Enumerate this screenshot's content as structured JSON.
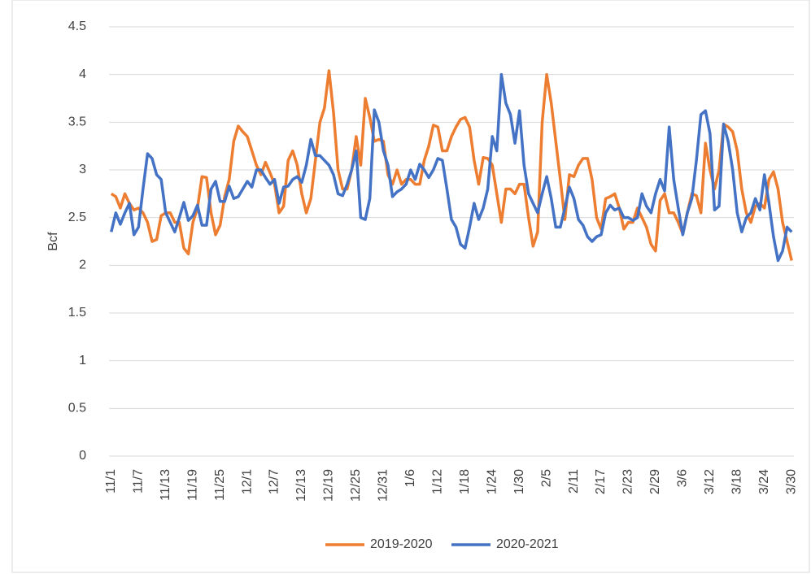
{
  "chart_data": {
    "type": "line",
    "y_label": "Bcf",
    "categories": [
      "11/1",
      null,
      null,
      null,
      null,
      null,
      "11/7",
      null,
      null,
      null,
      null,
      null,
      "11/13",
      null,
      null,
      null,
      null,
      null,
      "11/19",
      null,
      null,
      null,
      null,
      null,
      "11/25",
      null,
      null,
      null,
      null,
      null,
      "12/1",
      null,
      null,
      null,
      null,
      null,
      "12/7",
      null,
      null,
      null,
      null,
      null,
      "12/13",
      null,
      null,
      null,
      null,
      null,
      "12/19",
      null,
      null,
      null,
      null,
      null,
      "12/25",
      null,
      null,
      null,
      null,
      null,
      "12/31",
      null,
      null,
      null,
      null,
      null,
      "1/6",
      null,
      null,
      null,
      null,
      null,
      "1/12",
      null,
      null,
      null,
      null,
      null,
      "1/18",
      null,
      null,
      null,
      null,
      null,
      "1/24",
      null,
      null,
      null,
      null,
      null,
      "1/30",
      null,
      null,
      null,
      null,
      null,
      "2/5",
      null,
      null,
      null,
      null,
      null,
      "2/11",
      null,
      null,
      null,
      null,
      null,
      "2/17",
      null,
      null,
      null,
      null,
      null,
      "2/23",
      null,
      null,
      null,
      null,
      null,
      "2/29",
      null,
      null,
      null,
      null,
      null,
      "3/6",
      null,
      null,
      null,
      null,
      null,
      "3/12",
      null,
      null,
      null,
      null,
      null,
      "3/18",
      null,
      null,
      null,
      null,
      null,
      "3/24",
      null,
      null,
      null,
      null,
      null,
      "3/30"
    ],
    "series": [
      {
        "name": "2019-2020",
        "color": "#ed7d31",
        "values": [
          2.75,
          2.72,
          2.6,
          2.75,
          2.65,
          2.58,
          2.6,
          2.55,
          2.45,
          2.25,
          2.27,
          2.52,
          2.55,
          2.55,
          2.45,
          2.45,
          2.18,
          2.12,
          2.45,
          2.6,
          2.93,
          2.92,
          2.55,
          2.32,
          2.42,
          2.72,
          2.9,
          3.3,
          3.46,
          3.4,
          3.35,
          3.2,
          3.05,
          2.95,
          3.08,
          2.97,
          2.85,
          2.55,
          2.62,
          3.1,
          3.2,
          3.05,
          2.75,
          2.55,
          2.7,
          3.1,
          3.5,
          3.65,
          4.04,
          3.6,
          3.0,
          2.8,
          2.8,
          3.0,
          3.35,
          3.05,
          3.75,
          3.55,
          3.3,
          3.32,
          3.3,
          2.95,
          2.85,
          3.0,
          2.85,
          2.9,
          2.9,
          2.85,
          2.85,
          3.1,
          3.25,
          3.47,
          3.45,
          3.2,
          3.2,
          3.35,
          3.45,
          3.53,
          3.55,
          3.45,
          3.1,
          2.85,
          3.13,
          3.12,
          3.05,
          2.75,
          2.45,
          2.8,
          2.8,
          2.75,
          2.85,
          2.85,
          2.5,
          2.2,
          2.35,
          3.5,
          4.0,
          3.7,
          3.3,
          2.9,
          2.48,
          2.95,
          2.93,
          3.05,
          3.12,
          3.12,
          2.9,
          2.5,
          2.38,
          2.7,
          2.72,
          2.75,
          2.6,
          2.38,
          2.45,
          2.45,
          2.6,
          2.5,
          2.4,
          2.22,
          2.15,
          2.68,
          2.75,
          2.55,
          2.55,
          2.45,
          2.33,
          2.55,
          2.75,
          2.73,
          2.55,
          3.28,
          3.0,
          2.8,
          3.0,
          3.48,
          3.45,
          3.4,
          3.2,
          2.8,
          2.55,
          2.45,
          2.62,
          2.65,
          2.6,
          2.9,
          2.98,
          2.8,
          2.45,
          2.25,
          2.05
        ]
      },
      {
        "name": "2020-2021",
        "color": "#4472c4",
        "values": [
          2.35,
          2.55,
          2.43,
          2.55,
          2.65,
          2.32,
          2.4,
          2.8,
          3.17,
          3.12,
          2.95,
          2.9,
          2.55,
          2.45,
          2.35,
          2.5,
          2.66,
          2.47,
          2.52,
          2.63,
          2.42,
          2.42,
          2.8,
          2.88,
          2.67,
          2.67,
          2.83,
          2.7,
          2.72,
          2.8,
          2.88,
          2.82,
          3.0,
          3.0,
          2.92,
          2.85,
          2.9,
          2.65,
          2.82,
          2.83,
          2.9,
          2.93,
          2.87,
          3.05,
          3.32,
          3.15,
          3.15,
          3.1,
          3.05,
          2.95,
          2.75,
          2.73,
          2.85,
          3.0,
          3.2,
          2.5,
          2.48,
          2.7,
          3.63,
          3.5,
          3.2,
          3.05,
          2.72,
          2.77,
          2.8,
          2.85,
          3.0,
          2.9,
          3.06,
          3.0,
          2.92,
          3.0,
          3.12,
          3.1,
          2.8,
          2.48,
          2.4,
          2.22,
          2.18,
          2.4,
          2.65,
          2.48,
          2.6,
          2.8,
          3.35,
          3.2,
          4.0,
          3.7,
          3.58,
          3.28,
          3.62,
          3.05,
          2.75,
          2.65,
          2.55,
          2.75,
          2.93,
          2.7,
          2.4,
          2.4,
          2.6,
          2.82,
          2.7,
          2.48,
          2.42,
          2.3,
          2.25,
          2.3,
          2.32,
          2.55,
          2.63,
          2.58,
          2.6,
          2.5,
          2.5,
          2.47,
          2.5,
          2.75,
          2.62,
          2.55,
          2.75,
          2.9,
          2.78,
          3.45,
          2.9,
          2.6,
          2.32,
          2.55,
          2.7,
          3.1,
          3.58,
          3.62,
          3.38,
          2.58,
          2.62,
          3.48,
          3.3,
          3.0,
          2.55,
          2.35,
          2.5,
          2.55,
          2.7,
          2.58,
          2.95,
          2.65,
          2.3,
          2.05,
          2.15,
          2.4,
          2.35
        ]
      }
    ],
    "ylim": [
      0,
      4.5
    ],
    "yticks": [
      0,
      0.5,
      1,
      1.5,
      2,
      2.5,
      3,
      3.5,
      4,
      4.5
    ],
    "grid": true,
    "legend": "bottom"
  }
}
